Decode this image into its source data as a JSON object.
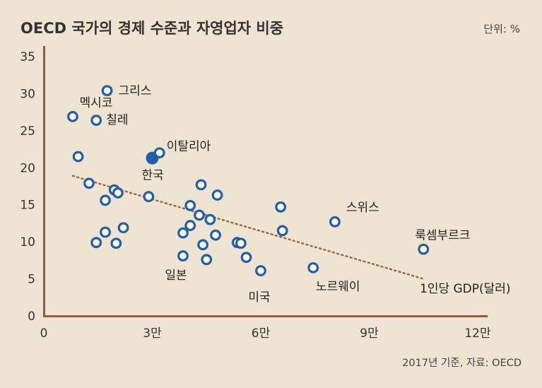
{
  "chart_data": {
    "type": "scatter",
    "title": "OECD 국가의 경제 수준과 자영업자 비중",
    "unit": "단위: %",
    "source": "2017년 기준, 자료: OECD",
    "xlabel": "1인당 GDP(달러)",
    "ylabel": "",
    "xlim": [
      0,
      120000
    ],
    "ylim": [
      0,
      35
    ],
    "x_ticks": [
      {
        "value": 0,
        "label": "0"
      },
      {
        "value": 30000,
        "label": "3만"
      },
      {
        "value": 60000,
        "label": "6만"
      },
      {
        "value": 90000,
        "label": "9만"
      },
      {
        "value": 120000,
        "label": "12만"
      }
    ],
    "y_ticks": [
      {
        "value": 0,
        "label": "0"
      },
      {
        "value": 5,
        "label": "5"
      },
      {
        "value": 10,
        "label": "10"
      },
      {
        "value": 15,
        "label": "15"
      },
      {
        "value": 20,
        "label": "20"
      },
      {
        "value": 25,
        "label": "25"
      },
      {
        "value": 30,
        "label": "30"
      },
      {
        "value": 35,
        "label": "35"
      }
    ],
    "grid": false,
    "highlight_color": "#1f5fae",
    "point_color": "#1f5fae",
    "trend_color": "#9b6a45",
    "points": [
      {
        "x": 17500,
        "y": 30.4,
        "label": "그리스"
      },
      {
        "x": 8000,
        "y": 26.9,
        "label": "멕시코"
      },
      {
        "x": 14500,
        "y": 26.4,
        "label": "칠레"
      },
      {
        "x": 30000,
        "y": 21.3,
        "label": "한국",
        "highlight": true
      },
      {
        "x": 32000,
        "y": 22.0,
        "label": "이탈리아"
      },
      {
        "x": 9500,
        "y": 21.5
      },
      {
        "x": 12500,
        "y": 17.9
      },
      {
        "x": 19500,
        "y": 17.0
      },
      {
        "x": 20500,
        "y": 16.6
      },
      {
        "x": 17000,
        "y": 15.6
      },
      {
        "x": 29000,
        "y": 16.1
      },
      {
        "x": 43500,
        "y": 17.7
      },
      {
        "x": 48000,
        "y": 16.3
      },
      {
        "x": 40500,
        "y": 14.9
      },
      {
        "x": 43000,
        "y": 13.6
      },
      {
        "x": 46000,
        "y": 13.0
      },
      {
        "x": 40500,
        "y": 12.2
      },
      {
        "x": 38500,
        "y": 11.2
      },
      {
        "x": 22000,
        "y": 11.9
      },
      {
        "x": 17000,
        "y": 11.3
      },
      {
        "x": 47500,
        "y": 10.9
      },
      {
        "x": 14500,
        "y": 9.9
      },
      {
        "x": 20000,
        "y": 9.8
      },
      {
        "x": 44000,
        "y": 9.6
      },
      {
        "x": 53500,
        "y": 9.9
      },
      {
        "x": 54500,
        "y": 9.8
      },
      {
        "x": 38500,
        "y": 8.1,
        "label": "일본"
      },
      {
        "x": 45000,
        "y": 7.6
      },
      {
        "x": 56000,
        "y": 7.9
      },
      {
        "x": 60000,
        "y": 6.1,
        "label": "미국"
      },
      {
        "x": 65500,
        "y": 14.7
      },
      {
        "x": 66000,
        "y": 11.5
      },
      {
        "x": 74500,
        "y": 6.5,
        "label": "노르웨이"
      },
      {
        "x": 80500,
        "y": 12.7,
        "label": "스위스"
      },
      {
        "x": 105000,
        "y": 9.0,
        "label": "룩셈부르크"
      }
    ],
    "trend_line": {
      "x": [
        8000,
        105000
      ],
      "y": [
        18.9,
        5.0
      ]
    }
  }
}
